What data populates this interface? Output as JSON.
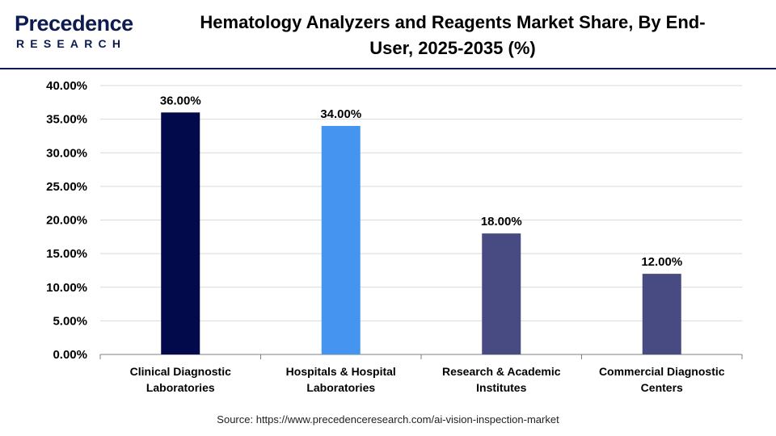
{
  "brand": {
    "name_prefix": "P",
    "name_rest": "recedence",
    "sub": "RESEARCH"
  },
  "title_line1": "Hematology Analyzers and Reagents Market Share, By End-",
  "title_line2": "User, 2025-2035 (%)",
  "source": "Source: https://www.precedenceresearch.com/ai-vision-inspection-market",
  "colors": {
    "brand_navy": "#0d1b4f",
    "grid": "#d9d9d9",
    "axis": "#7f7f7f"
  },
  "chart_data": {
    "type": "bar",
    "categories": [
      [
        "Clinical Diagnostic",
        "Laboratories"
      ],
      [
        "Hospitals & Hospital",
        "Laboratories"
      ],
      [
        "Research & Academic",
        "Institutes"
      ],
      [
        "Commercial Diagnostic",
        "Centers"
      ]
    ],
    "values": [
      36.0,
      34.0,
      18.0,
      12.0
    ],
    "value_labels": [
      "36.00%",
      "34.00%",
      "18.00%",
      "12.00%"
    ],
    "bar_colors": [
      "#020a4b",
      "#4595f0",
      "#484a82",
      "#484a82"
    ],
    "ylim": [
      0,
      40
    ],
    "yticks": [
      0,
      5,
      10,
      15,
      20,
      25,
      30,
      35,
      40
    ],
    "ytick_labels": [
      "0.00%",
      "5.00%",
      "10.00%",
      "15.00%",
      "20.00%",
      "25.00%",
      "30.00%",
      "35.00%",
      "40.00%"
    ],
    "grid": true,
    "legend": "none"
  }
}
